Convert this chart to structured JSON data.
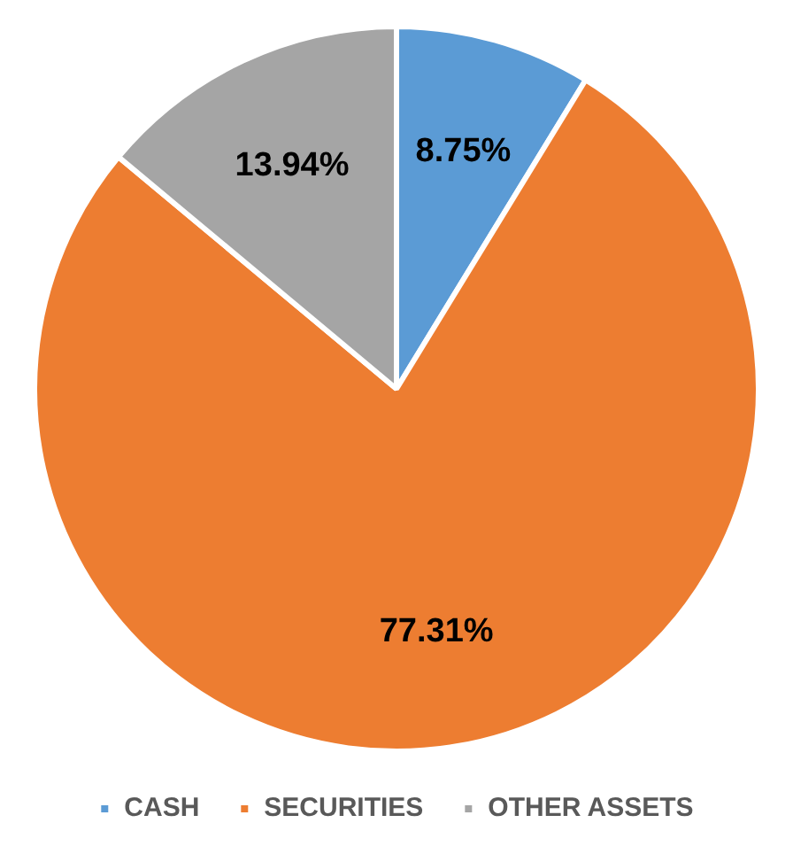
{
  "chart_data": {
    "type": "pie",
    "categories": [
      "CASH",
      "SECURITIES",
      "OTHER ASSETS"
    ],
    "values": [
      8.75,
      77.31,
      13.94
    ],
    "colors": [
      "#5b9bd5",
      "#ed7d31",
      "#a5a5a5"
    ],
    "value_labels": [
      "8.75%",
      "77.31%",
      "13.94%"
    ],
    "legend": "bottom"
  }
}
